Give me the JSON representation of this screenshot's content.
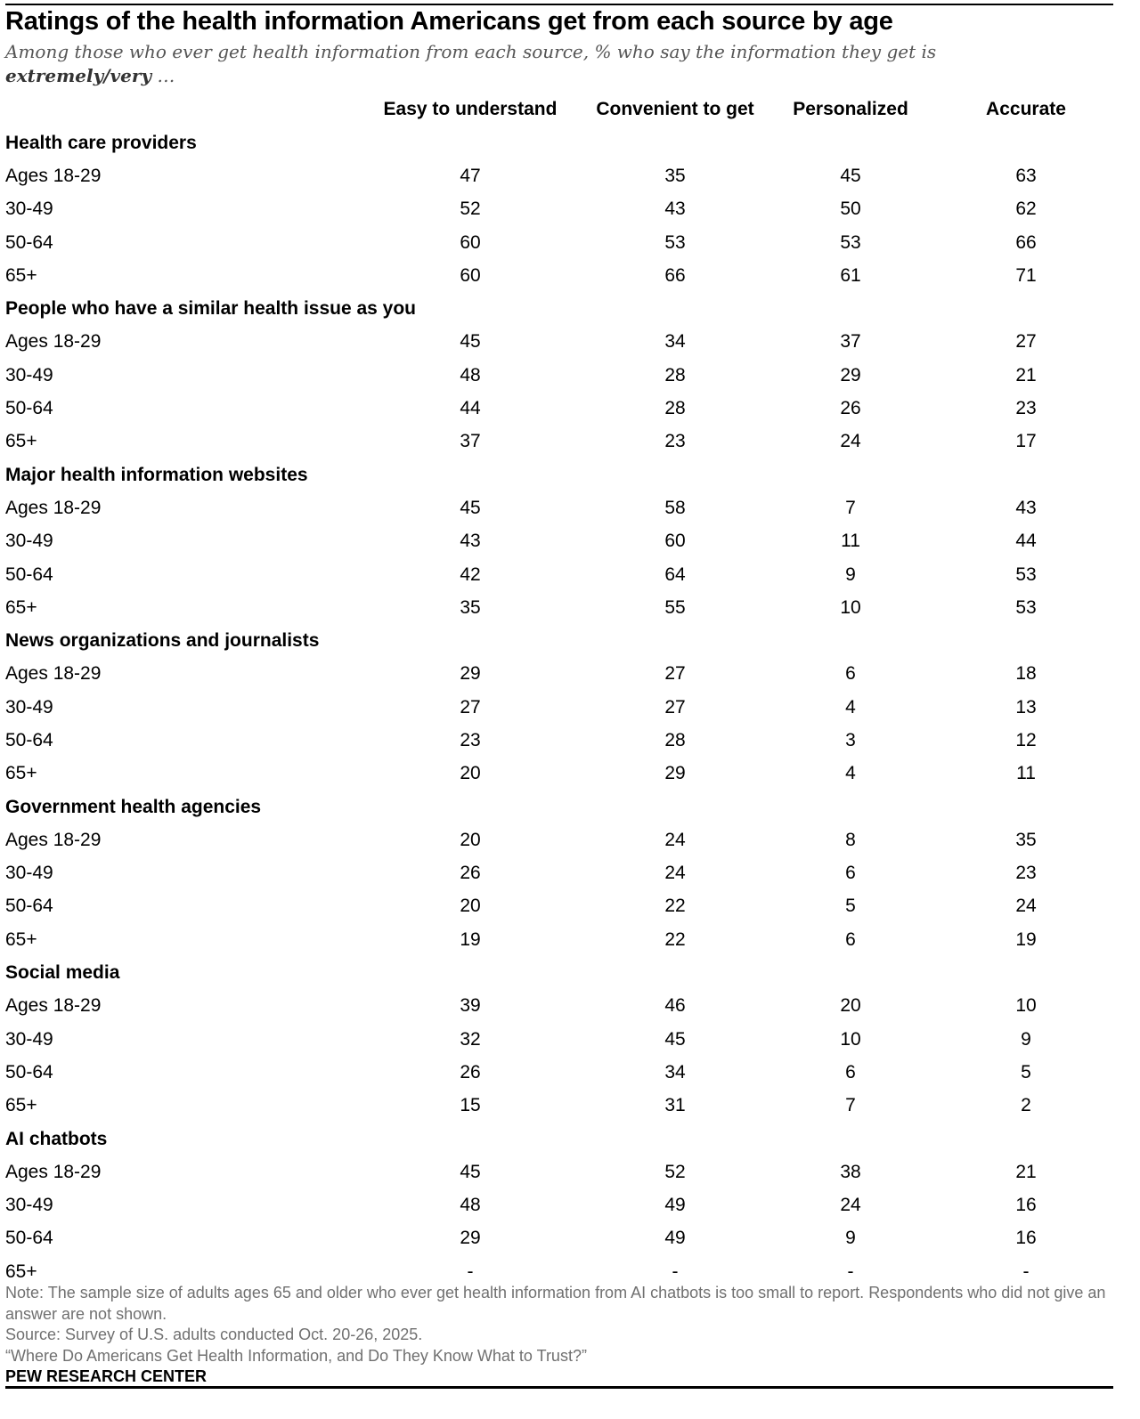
{
  "title": "Ratings of the health information Americans get from each source by age",
  "subtitle_main": "Among those who ever get health information from each source, % who say the information they get is",
  "subtitle_emph": "extremely/very",
  "subtitle_tail": " …",
  "chart_data": {
    "type": "table",
    "columns": [
      "Easy to understand",
      "Convenient to get",
      "Personalized",
      "Accurate"
    ],
    "groups": [
      {
        "name": "Health care providers",
        "rows": [
          {
            "label": "Ages 18-29",
            "values": [
              "47",
              "35",
              "45",
              "63"
            ]
          },
          {
            "label": "30-49",
            "values": [
              "52",
              "43",
              "50",
              "62"
            ]
          },
          {
            "label": "50-64",
            "values": [
              "60",
              "53",
              "53",
              "66"
            ]
          },
          {
            "label": "65+",
            "values": [
              "60",
              "66",
              "61",
              "71"
            ]
          }
        ]
      },
      {
        "name": "People who have a similar health issue as you",
        "rows": [
          {
            "label": "Ages 18-29",
            "values": [
              "45",
              "34",
              "37",
              "27"
            ]
          },
          {
            "label": "30-49",
            "values": [
              "48",
              "28",
              "29",
              "21"
            ]
          },
          {
            "label": "50-64",
            "values": [
              "44",
              "28",
              "26",
              "23"
            ]
          },
          {
            "label": "65+",
            "values": [
              "37",
              "23",
              "24",
              "17"
            ]
          }
        ]
      },
      {
        "name": "Major health information websites",
        "rows": [
          {
            "label": "Ages 18-29",
            "values": [
              "45",
              "58",
              "7",
              "43"
            ]
          },
          {
            "label": "30-49",
            "values": [
              "43",
              "60",
              "11",
              "44"
            ]
          },
          {
            "label": "50-64",
            "values": [
              "42",
              "64",
              "9",
              "53"
            ]
          },
          {
            "label": "65+",
            "values": [
              "35",
              "55",
              "10",
              "53"
            ]
          }
        ]
      },
      {
        "name": "News organizations and journalists",
        "rows": [
          {
            "label": "Ages 18-29",
            "values": [
              "29",
              "27",
              "6",
              "18"
            ]
          },
          {
            "label": "30-49",
            "values": [
              "27",
              "27",
              "4",
              "13"
            ]
          },
          {
            "label": "50-64",
            "values": [
              "23",
              "28",
              "3",
              "12"
            ]
          },
          {
            "label": "65+",
            "values": [
              "20",
              "29",
              "4",
              "11"
            ]
          }
        ]
      },
      {
        "name": "Government health agencies",
        "rows": [
          {
            "label": "Ages 18-29",
            "values": [
              "20",
              "24",
              "8",
              "35"
            ]
          },
          {
            "label": "30-49",
            "values": [
              "26",
              "24",
              "6",
              "23"
            ]
          },
          {
            "label": "50-64",
            "values": [
              "20",
              "22",
              "5",
              "24"
            ]
          },
          {
            "label": "65+",
            "values": [
              "19",
              "22",
              "6",
              "19"
            ]
          }
        ]
      },
      {
        "name": "Social media",
        "rows": [
          {
            "label": "Ages 18-29",
            "values": [
              "39",
              "46",
              "20",
              "10"
            ]
          },
          {
            "label": "30-49",
            "values": [
              "32",
              "45",
              "10",
              "9"
            ]
          },
          {
            "label": "50-64",
            "values": [
              "26",
              "34",
              "6",
              "5"
            ]
          },
          {
            "label": "65+",
            "values": [
              "15",
              "31",
              "7",
              "2"
            ]
          }
        ]
      },
      {
        "name": "AI chatbots",
        "rows": [
          {
            "label": "Ages 18-29",
            "values": [
              "45",
              "52",
              "38",
              "21"
            ]
          },
          {
            "label": "30-49",
            "values": [
              "48",
              "49",
              "24",
              "16"
            ]
          },
          {
            "label": "50-64",
            "values": [
              "29",
              "49",
              "9",
              "16"
            ]
          },
          {
            "label": "65+",
            "values": [
              "-",
              "-",
              "-",
              "-"
            ]
          }
        ]
      }
    ]
  },
  "footer": {
    "note": "Note: The sample size of adults ages 65 and older who ever get health information from AI chatbots is too small to report. Respondents who did not give an answer are not shown.",
    "source": "Source: Survey of U.S. adults conducted Oct. 20-26, 2025.",
    "report": "“Where Do Americans Get Health Information, and Do They Know What to Trust?”",
    "brand": "PEW RESEARCH CENTER"
  }
}
